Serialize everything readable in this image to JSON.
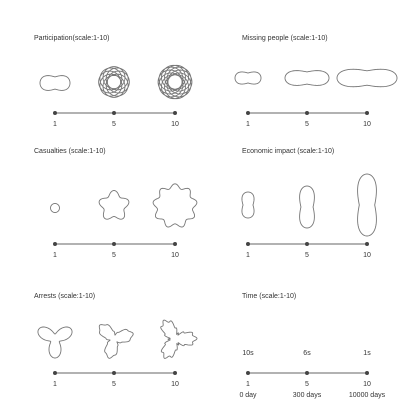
{
  "panels": [
    {
      "key": "participation",
      "title": "Participation(scale:1-10)",
      "ticks": [
        "1",
        "5",
        "10"
      ]
    },
    {
      "key": "missing",
      "title": "Missing people (scale:1-10)",
      "ticks": [
        "1",
        "5",
        "10"
      ]
    },
    {
      "key": "casualties",
      "title": "Casualties (scale:1-10)",
      "ticks": [
        "1",
        "5",
        "10"
      ]
    },
    {
      "key": "economic",
      "title": "Economic impact (scale:1-10)",
      "ticks": [
        "1",
        "5",
        "10"
      ]
    },
    {
      "key": "arrests",
      "title": "Arrests (scale:1-10)",
      "ticks": [
        "1",
        "5",
        "10"
      ]
    },
    {
      "key": "time",
      "title": "Time (scale:1-10)",
      "ticks": [
        "1",
        "5",
        "10"
      ],
      "durations": [
        "10s",
        "6s",
        "1s"
      ],
      "days": [
        "0 day",
        "300 days",
        "10000 days"
      ]
    }
  ]
}
